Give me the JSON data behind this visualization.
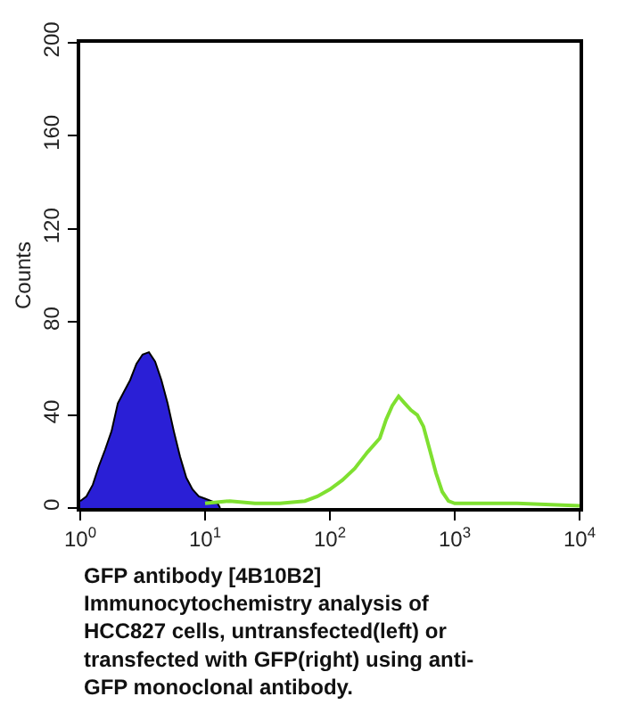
{
  "chart_data": {
    "type": "area",
    "ylabel": "Counts",
    "log": "x",
    "xlim": [
      1,
      10000
    ],
    "ylim": [
      0,
      200
    ],
    "xticks": [
      {
        "value": 1,
        "label": "10$^{0}$"
      },
      {
        "value": 10,
        "label": "10$^{1}$"
      },
      {
        "value": 100,
        "label": "10$^{2}$"
      },
      {
        "value": 1000,
        "label": "10$^{3}$"
      },
      {
        "value": 10000,
        "label": "10$^{4}$"
      }
    ],
    "yticks": [
      0,
      40,
      80,
      120,
      160,
      200
    ],
    "series": [
      {
        "color": "#2a1fd6",
        "x": [
          1,
          1.12,
          1.26,
          1.41,
          1.58,
          1.78,
          2.0,
          2.24,
          2.51,
          2.82,
          3.16,
          3.55,
          3.98,
          4.47,
          5.01,
          5.62,
          6.31,
          7.08,
          7.94,
          8.91,
          10,
          11.2,
          12.6,
          13.2
        ],
        "values": [
          3,
          5,
          10,
          18,
          25,
          33,
          45,
          50,
          55,
          62,
          66,
          67,
          63,
          55,
          45,
          33,
          22,
          13,
          8,
          5,
          4,
          3,
          2,
          0
        ]
      },
      {
        "type": "line",
        "color": "#7fe030",
        "x": [
          10,
          15.8,
          25.1,
          39.8,
          63.1,
          79.4,
          100,
          126,
          158,
          200,
          251,
          282,
          316,
          355,
          398,
          447,
          501,
          562,
          631,
          708,
          794,
          891,
          1000,
          1580,
          3160,
          10000
        ],
        "values": [
          2,
          3,
          2,
          2,
          3,
          5,
          8,
          12,
          17,
          24,
          30,
          38,
          44,
          48,
          45,
          42,
          40,
          35,
          25,
          15,
          7,
          3,
          2,
          2,
          2,
          1
        ]
      }
    ],
    "annotations": [
      "GFP antibody [4B10B2]\nImmunocytochemistry analysis of\nHCC827 cells, untransfected(left) or\ntransfected with GFP(right) using anti-\nGFP monoclonal antibody."
    ]
  }
}
